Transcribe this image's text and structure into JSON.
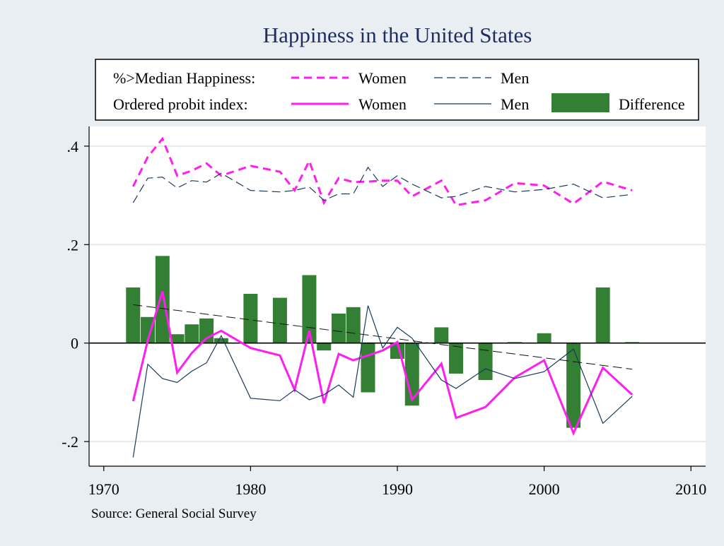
{
  "chart_data": {
    "type": "line",
    "title": "Happiness in the United States",
    "source": "Source: General Social Survey",
    "xlim": [
      1969,
      2011
    ],
    "ylim": [
      -0.25,
      0.44
    ],
    "x_ticks": [
      1970,
      1980,
      1990,
      2000,
      2010
    ],
    "x_tick_labels": [
      "1970",
      "1980",
      "1990",
      "2000",
      "2010"
    ],
    "y_ticks": [
      -0.2,
      0,
      0.2,
      0.4
    ],
    "y_tick_labels": [
      "-.2",
      "0",
      ".2",
      ".4"
    ],
    "grid": true,
    "legend": {
      "placement": "top",
      "row1_label": "%>Median Happiness:",
      "row2_label": "Ordered probit index:",
      "women_label": "Women",
      "men_label": "Men",
      "difference_label": "Difference"
    },
    "series": [
      {
        "key": "median_women",
        "style": "dashed-thick",
        "color": "#ff1ef0",
        "x": [
          1972,
          1973,
          1974,
          1975,
          1976,
          1977,
          1978,
          1980,
          1982,
          1983,
          1984,
          1985,
          1986,
          1987,
          1988,
          1989,
          1990,
          1991,
          1993,
          1994,
          1996,
          1998,
          2000,
          2002,
          2004,
          2006
        ],
        "y": [
          0.318,
          0.378,
          0.415,
          0.34,
          0.35,
          0.365,
          0.34,
          0.36,
          0.348,
          0.31,
          0.37,
          0.285,
          0.335,
          0.327,
          0.328,
          0.33,
          0.33,
          0.298,
          0.33,
          0.28,
          0.29,
          0.325,
          0.32,
          0.283,
          0.328,
          0.31
        ]
      },
      {
        "key": "median_men",
        "style": "dashed-thin",
        "color": "#1a3a5c",
        "x": [
          1972,
          1973,
          1974,
          1975,
          1976,
          1977,
          1978,
          1980,
          1982,
          1983,
          1984,
          1985,
          1986,
          1987,
          1988,
          1989,
          1990,
          1991,
          1993,
          1994,
          1996,
          1998,
          2000,
          2002,
          2004,
          2006
        ],
        "y": [
          0.285,
          0.335,
          0.337,
          0.315,
          0.33,
          0.327,
          0.345,
          0.31,
          0.307,
          0.31,
          0.317,
          0.29,
          0.303,
          0.303,
          0.357,
          0.318,
          0.34,
          0.323,
          0.295,
          0.298,
          0.318,
          0.307,
          0.312,
          0.323,
          0.295,
          0.302
        ]
      },
      {
        "key": "probit_women",
        "style": "solid-thick",
        "color": "#ff1ef0",
        "x": [
          1972,
          1973,
          1974,
          1975,
          1976,
          1977,
          1978,
          1980,
          1982,
          1983,
          1984,
          1985,
          1986,
          1987,
          1988,
          1989,
          1990,
          1991,
          1993,
          1994,
          1996,
          1998,
          2000,
          2002,
          2004,
          2006
        ],
        "y": [
          -0.118,
          0.005,
          0.105,
          -0.06,
          -0.02,
          0.01,
          0.025,
          -0.01,
          -0.025,
          -0.095,
          0.025,
          -0.122,
          -0.022,
          -0.035,
          -0.025,
          -0.015,
          0.002,
          -0.115,
          -0.042,
          -0.152,
          -0.13,
          -0.07,
          -0.035,
          -0.183,
          -0.05,
          -0.105
        ]
      },
      {
        "key": "probit_men",
        "style": "solid-thin",
        "color": "#1a3a5c",
        "x": [
          1972,
          1973,
          1974,
          1975,
          1976,
          1977,
          1978,
          1980,
          1982,
          1983,
          1984,
          1985,
          1986,
          1987,
          1988,
          1989,
          1990,
          1991,
          1993,
          1994,
          1996,
          1998,
          2000,
          2002,
          2004,
          2006
        ],
        "y": [
          -0.232,
          -0.043,
          -0.072,
          -0.08,
          -0.057,
          -0.04,
          0.015,
          -0.112,
          -0.117,
          -0.095,
          -0.115,
          -0.105,
          -0.085,
          -0.11,
          0.076,
          -0.01,
          0.032,
          0.01,
          -0.075,
          -0.092,
          -0.052,
          -0.072,
          -0.058,
          -0.012,
          -0.163,
          -0.108
        ]
      },
      {
        "key": "trend",
        "style": "dashed-trend",
        "color": "#111111",
        "x": [
          1972,
          2006
        ],
        "y": [
          0.078,
          -0.053
        ]
      }
    ],
    "difference": {
      "color": "#337f33",
      "x": [
        1972,
        1973,
        1974,
        1975,
        1976,
        1977,
        1978,
        1980,
        1982,
        1984,
        1985,
        1986,
        1987,
        1988,
        1990,
        1991,
        1993,
        1994,
        1996,
        1998,
        2000,
        2002,
        2004,
        2006
      ],
      "values": [
        0.113,
        0.053,
        0.177,
        0.018,
        0.038,
        0.05,
        0.01,
        0.1,
        0.092,
        0.138,
        -0.015,
        0.06,
        0.073,
        -0.1,
        -0.032,
        -0.127,
        0.032,
        -0.062,
        -0.075,
        0.002,
        0.02,
        -0.172,
        0.113,
        0.002
      ]
    }
  }
}
